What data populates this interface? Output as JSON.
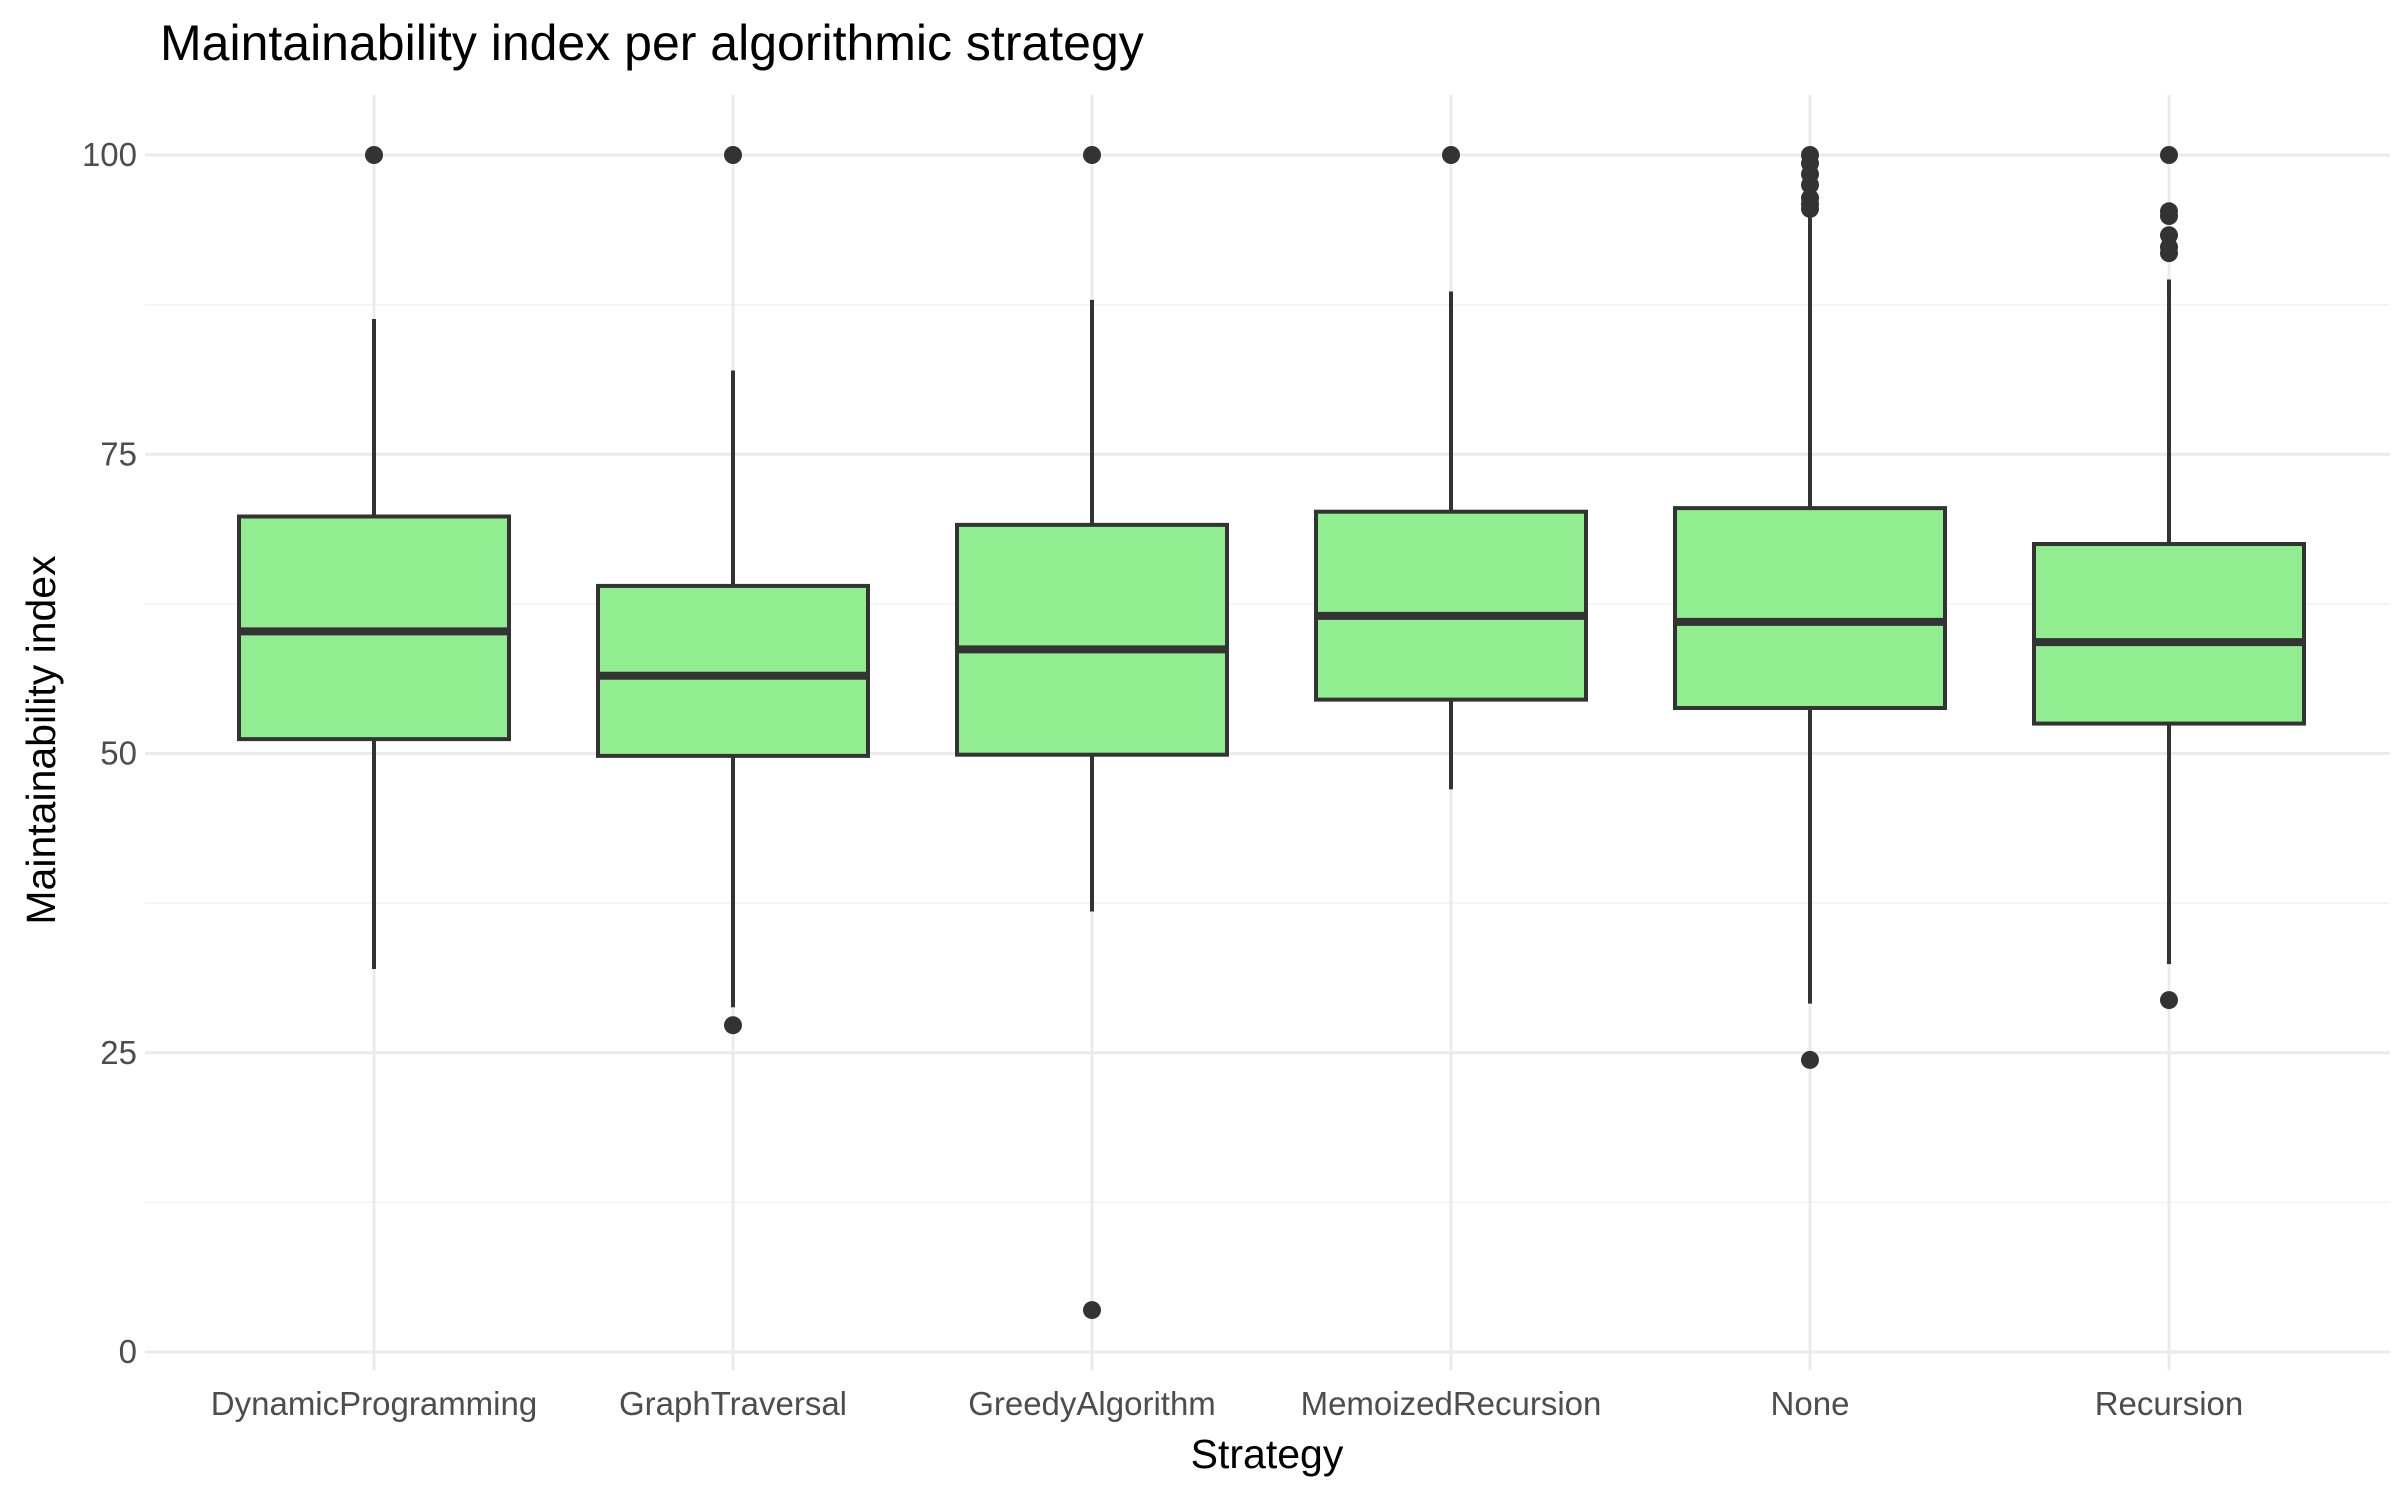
{
  "chart_data": {
    "type": "boxplot",
    "title": "Maintainability index per algorithmic strategy",
    "xlabel": "Strategy",
    "ylabel": "Maintainability index",
    "ylim": [
      0,
      100
    ],
    "yticks": [
      0,
      25,
      50,
      75,
      100
    ],
    "grid": true,
    "legend": "none",
    "box_color": "#90EE90",
    "line_color": "#333333",
    "categories": [
      "DynamicProgramming",
      "GraphTraversal",
      "GreedyAlgorithm",
      "MemoizedRecursion",
      "None",
      "Recursion"
    ],
    "boxes": [
      {
        "category": "DynamicProgramming",
        "whisker_low": 32.0,
        "q1": 51.2,
        "median": 60.2,
        "q3": 69.8,
        "whisker_high": 86.3,
        "outliers": [
          100.0
        ]
      },
      {
        "category": "GraphTraversal",
        "whisker_low": 28.8,
        "q1": 49.8,
        "median": 56.5,
        "q3": 64.0,
        "whisker_high": 82.0,
        "outliers": [
          100.0,
          27.3
        ]
      },
      {
        "category": "GreedyAlgorithm",
        "whisker_low": 36.8,
        "q1": 49.9,
        "median": 58.7,
        "q3": 69.1,
        "whisker_high": 87.9,
        "outliers": [
          100.0,
          3.5
        ]
      },
      {
        "category": "MemoizedRecursion",
        "whisker_low": 47.0,
        "q1": 54.5,
        "median": 61.5,
        "q3": 70.2,
        "whisker_high": 88.6,
        "outliers": [
          100.0
        ]
      },
      {
        "category": "None",
        "whisker_low": 29.1,
        "q1": 53.8,
        "median": 61.0,
        "q3": 70.5,
        "whisker_high": 94.8,
        "outliers": [
          100.0,
          99.3,
          98.4,
          97.5,
          96.4,
          95.9,
          95.5,
          24.4
        ]
      },
      {
        "category": "Recursion",
        "whisker_low": 32.4,
        "q1": 52.5,
        "median": 59.3,
        "q3": 67.5,
        "whisker_high": 89.6,
        "outliers": [
          100.0,
          95.3,
          94.9,
          93.3,
          92.3,
          91.8,
          29.4
        ]
      }
    ]
  }
}
